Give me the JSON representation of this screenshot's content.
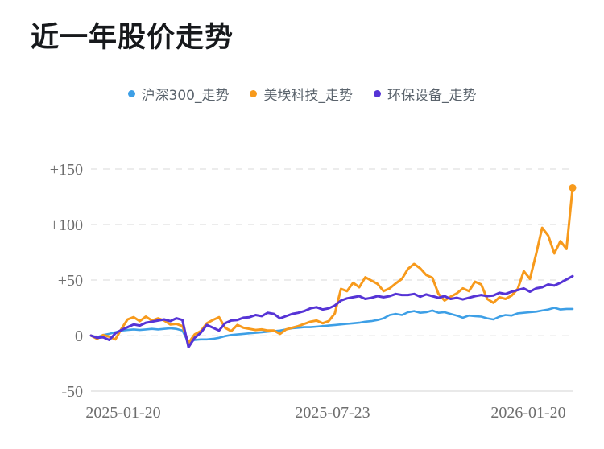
{
  "page_title": "近一年股价走势",
  "chart_data": {
    "type": "line",
    "title": "近一年股价走势",
    "legend_position": "top",
    "grid": "horizontal-dashed",
    "xlabel": "",
    "ylabel": "",
    "ylim": [
      -50,
      150
    ],
    "x_tick_labels": [
      "2025-01-20",
      "2025-07-23",
      "2026-01-20"
    ],
    "y_ticks": [
      {
        "value": -50,
        "label": "-50"
      },
      {
        "value": 0,
        "label": "0"
      },
      {
        "value": 50,
        "label": "+50"
      },
      {
        "value": 100,
        "label": "+100"
      },
      {
        "value": 150,
        "label": "+150"
      }
    ],
    "series": [
      {
        "name": "沪深300_走势",
        "color": "#3d9fe6",
        "end_dot": false,
        "values": [
          0,
          -1.5,
          0.5,
          1.5,
          3,
          4.5,
          5,
          5.5,
          5,
          5.5,
          6,
          5.5,
          6,
          6.5,
          6,
          4.5,
          -6.5,
          -4,
          -3.5,
          -3.5,
          -3,
          -2,
          -0.5,
          0.5,
          1,
          1.5,
          2,
          2.5,
          3,
          3.5,
          4,
          4.5,
          5.5,
          6.5,
          7,
          7.5,
          7.5,
          8,
          8.5,
          9,
          9.5,
          10,
          10.5,
          11,
          11.5,
          12.5,
          13,
          14,
          15.5,
          18.5,
          19.5,
          18.5,
          21,
          22,
          20.5,
          21,
          22.5,
          20.5,
          21,
          19.5,
          18,
          16,
          18,
          17.5,
          17,
          15.5,
          14.5,
          17,
          18.5,
          18,
          20,
          20.5,
          21,
          21.5,
          22.5,
          23.5,
          25,
          23.5,
          24,
          24
        ]
      },
      {
        "name": "美埃科技_走势",
        "color": "#f79a1c",
        "end_dot": true,
        "values": [
          0,
          -3,
          0.5,
          -1,
          -3.5,
          6,
          14.5,
          16.5,
          13,
          17,
          13.5,
          15.5,
          13.5,
          10,
          10.5,
          8.5,
          -6.5,
          1,
          4,
          11,
          14,
          16.5,
          7,
          4,
          9.5,
          7,
          6,
          5,
          5.5,
          4.5,
          4.5,
          1.5,
          5.5,
          7,
          8.5,
          10.5,
          12.5,
          13.5,
          11,
          13,
          20,
          42,
          40,
          47.5,
          43.5,
          52.5,
          49.5,
          46.5,
          40,
          42.5,
          47,
          51,
          60,
          64.5,
          60.5,
          54.5,
          52,
          37.5,
          31.5,
          35,
          38,
          42.5,
          40,
          48.5,
          46,
          33,
          29.5,
          34.5,
          33,
          36,
          42,
          58,
          51,
          73,
          97,
          90,
          74,
          85,
          78,
          133
        ]
      },
      {
        "name": "环保设备_走势",
        "color": "#5634d6",
        "end_dot": false,
        "values": [
          0,
          -2,
          -1.5,
          -4,
          2,
          5,
          7.5,
          10,
          9,
          11.5,
          12.5,
          13.5,
          14.5,
          13,
          15.5,
          14,
          -10.5,
          -2,
          2.5,
          9.5,
          7,
          4.5,
          11,
          13.5,
          14,
          16,
          16.5,
          18.5,
          17.5,
          20.5,
          19.5,
          15.5,
          17.5,
          19.5,
          20.5,
          22,
          24.5,
          25.5,
          23.5,
          24.5,
          27,
          31.5,
          33.5,
          34.5,
          35.5,
          33,
          34,
          35.5,
          34.5,
          35.5,
          37.5,
          36.5,
          36.5,
          37.5,
          35,
          37,
          35.5,
          34,
          35.5,
          33,
          34,
          32.5,
          34,
          35.5,
          36.5,
          35.5,
          36,
          38.5,
          37.5,
          39.5,
          41,
          42.5,
          39.5,
          42.5,
          43.5,
          46,
          45,
          47.5,
          50.5,
          53.5
        ]
      }
    ]
  }
}
